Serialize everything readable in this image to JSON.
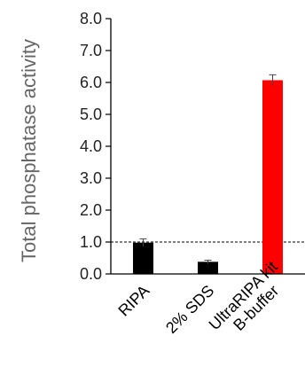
{
  "chart_data": {
    "type": "bar",
    "title": "",
    "xlabel": "",
    "ylabel": "Total phosphatase activity",
    "ylim": [
      0,
      8
    ],
    "yticks": [
      "0.0",
      "1.0",
      "2.0",
      "3.0",
      "4.0",
      "5.0",
      "6.0",
      "7.0",
      "8.0"
    ],
    "categories": [
      {
        "lines": [
          "RIPA"
        ]
      },
      {
        "lines": [
          "2% SDS"
        ]
      },
      {
        "lines": [
          "UltraRIPA kit",
          "B-buffer"
        ]
      }
    ],
    "values": [
      0.98,
      0.38,
      6.07
    ],
    "errors": [
      0.12,
      0.05,
      0.17
    ],
    "bar_colors": [
      "#000000",
      "#000000",
      "#ff0000"
    ],
    "reference_line": 1.0,
    "grid": false
  }
}
